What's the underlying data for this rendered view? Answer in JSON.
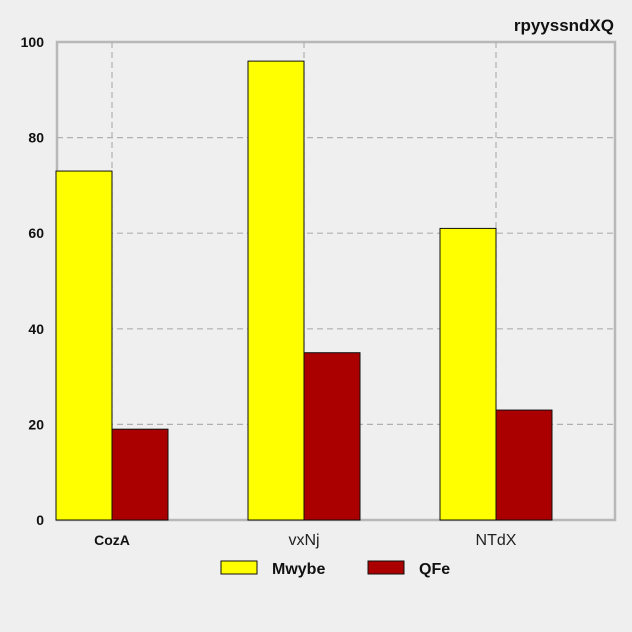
{
  "chart_data": {
    "type": "bar",
    "title": "rpyyssndXQ",
    "categories": [
      "CozA",
      "vxNj",
      "NTdX"
    ],
    "series": [
      {
        "name": "Mwybe",
        "color": "#ffff00",
        "values": [
          73,
          96,
          61
        ]
      },
      {
        "name": "QFe",
        "color": "#aa0000",
        "values": [
          19,
          35,
          23
        ]
      }
    ],
    "xlabel": "",
    "ylabel": "",
    "ylim": [
      0,
      100
    ],
    "yticks": [
      0,
      20,
      40,
      60,
      80,
      100
    ],
    "grid": true,
    "legend_position": "bottom"
  }
}
